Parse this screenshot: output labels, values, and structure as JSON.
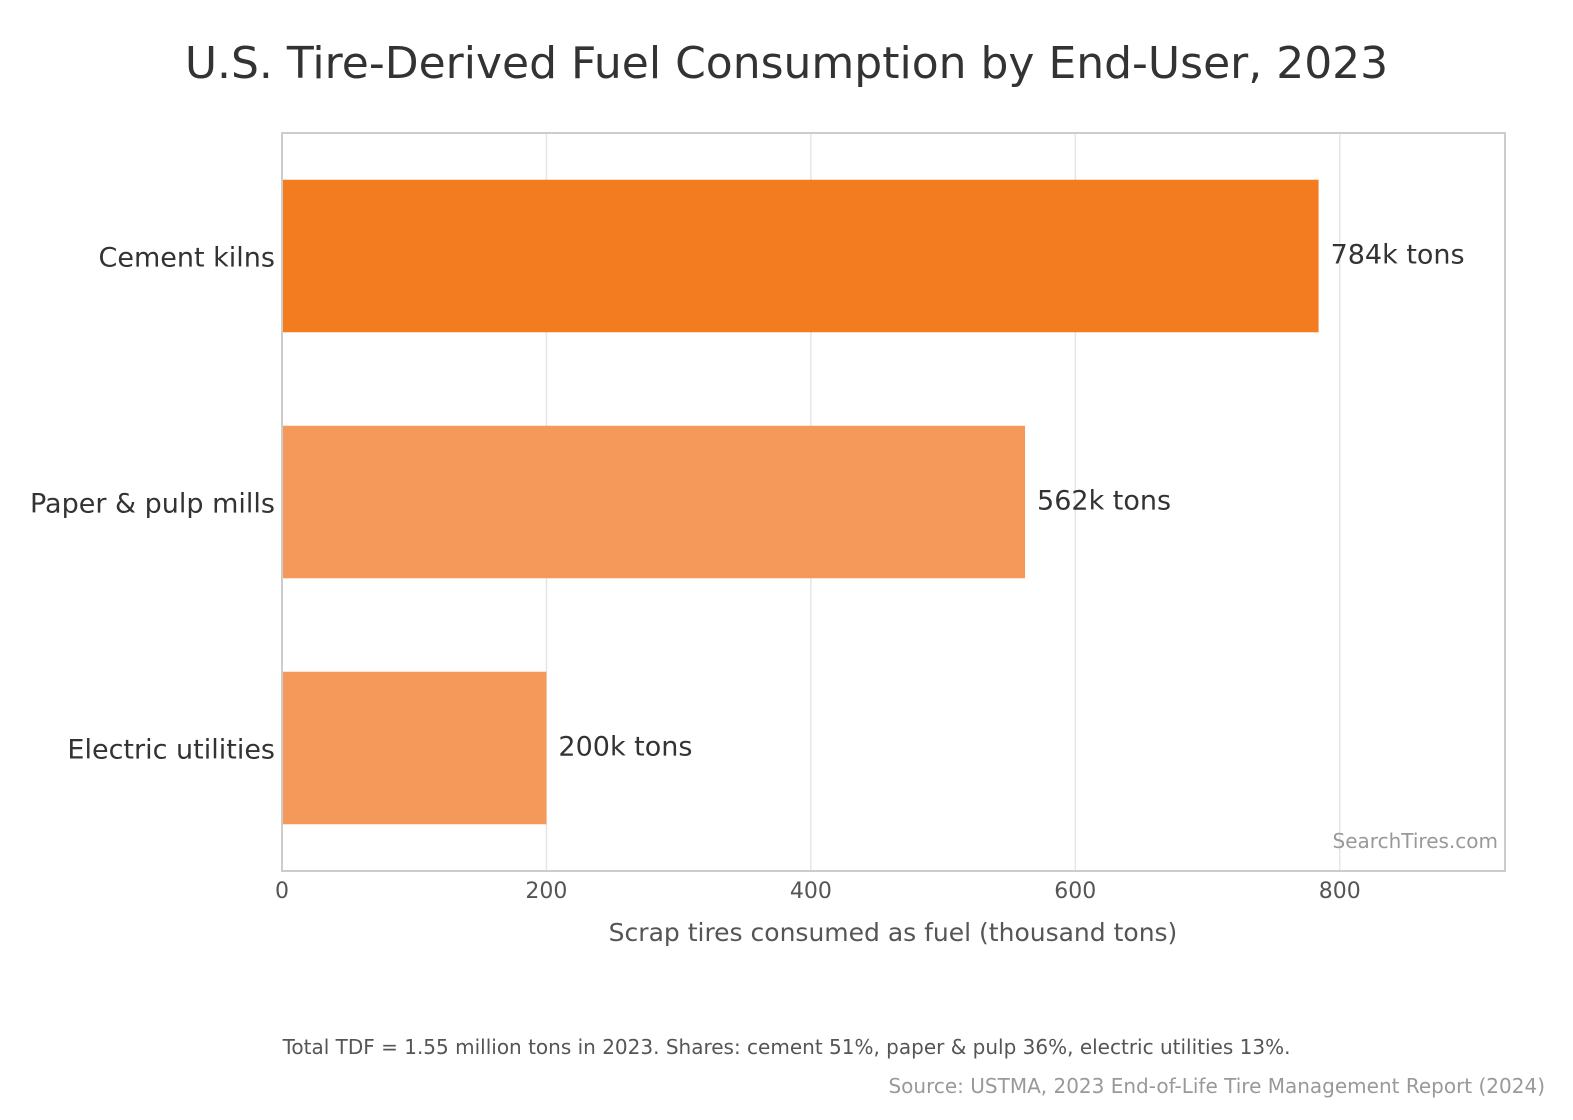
{
  "chart_data": {
    "type": "bar",
    "orientation": "horizontal",
    "title": "U.S. Tire-Derived Fuel Consumption by End-User, 2023",
    "xlabel": "Scrap tires consumed as fuel (thousand tons)",
    "ylabel": "",
    "categories": [
      "Cement kilns",
      "Paper & pulp mills",
      "Electric utilities"
    ],
    "values": [
      784,
      562,
      200
    ],
    "data_labels": [
      "784k tons",
      "562k tons",
      "200k tons"
    ],
    "colors": [
      "#f37c20",
      "#f5995a",
      "#f5995a"
    ],
    "xlim": [
      0,
      925
    ],
    "xticks": [
      0,
      200,
      400,
      600,
      800
    ],
    "grid": "vertical",
    "watermark": "SearchTires.com"
  },
  "footnote": "Total TDF = 1.55 million tons in 2023. Shares: cement 51%, paper & pulp 36%, electric utilities 13%.",
  "source": "Source: USTMA, 2023 End-of-Life Tire Management Report (2024)"
}
